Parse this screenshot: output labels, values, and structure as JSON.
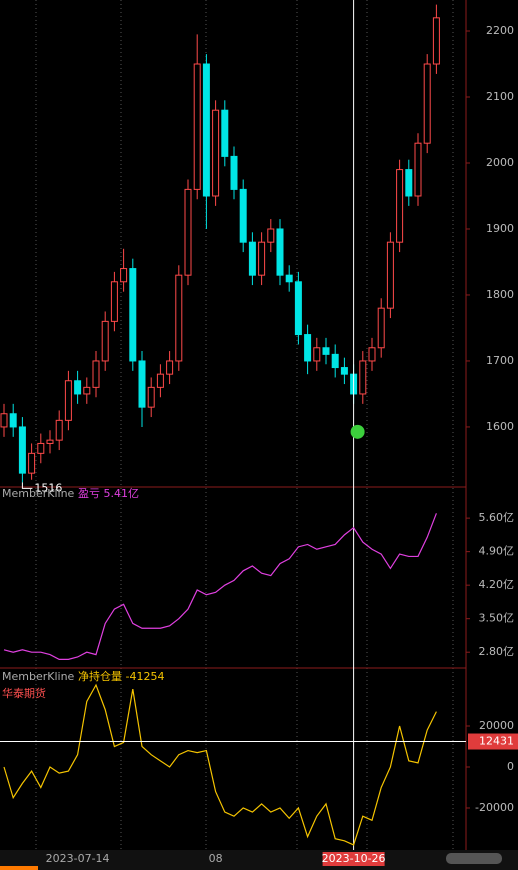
{
  "chart_data": [
    {
      "type": "candlestick",
      "categories": [
        null,
        null,
        null,
        null,
        null,
        null,
        null,
        null,
        "2023-07-14",
        null,
        null,
        null,
        null,
        null,
        null,
        null,
        null,
        null,
        null,
        null,
        null,
        null,
        null,
        "08",
        null,
        null,
        null,
        null,
        null,
        null,
        null,
        null,
        null,
        null,
        null,
        null,
        null,
        null,
        "2023-10-26",
        null,
        null,
        null,
        null,
        null,
        null,
        null,
        null,
        null
      ],
      "open": [
        1600,
        1620,
        1600,
        1530,
        1560,
        1575,
        1580,
        1610,
        1670,
        1650,
        1660,
        1700,
        1760,
        1820,
        1840,
        1700,
        1630,
        1660,
        1680,
        1700,
        1830,
        1960,
        2150,
        1950,
        2080,
        2010,
        1960,
        1880,
        1830,
        1880,
        1900,
        1830,
        1820,
        1740,
        1700,
        1720,
        1710,
        1690,
        1680,
        1650,
        1700,
        1720,
        1780,
        1880,
        1990,
        1950,
        2030,
        2150
      ],
      "high": [
        1635,
        1635,
        1615,
        1575,
        1590,
        1595,
        1625,
        1685,
        1685,
        1675,
        1715,
        1775,
        1835,
        1870,
        1855,
        1715,
        1675,
        1695,
        1715,
        1845,
        1975,
        2195,
        2165,
        2095,
        2095,
        2025,
        1975,
        1895,
        1895,
        1915,
        1915,
        1845,
        1835,
        1755,
        1735,
        1735,
        1725,
        1705,
        1695,
        1715,
        1735,
        1795,
        1895,
        2005,
        2005,
        2045,
        2165,
        2240
      ],
      "low": [
        1585,
        1585,
        1516,
        1520,
        1545,
        1560,
        1565,
        1595,
        1635,
        1635,
        1645,
        1685,
        1745,
        1805,
        1685,
        1600,
        1615,
        1645,
        1665,
        1685,
        1815,
        1945,
        1900,
        1935,
        1995,
        1945,
        1865,
        1815,
        1815,
        1865,
        1815,
        1805,
        1725,
        1680,
        1685,
        1695,
        1675,
        1665,
        1635,
        1635,
        1685,
        1705,
        1765,
        1865,
        1935,
        1935,
        2015,
        2135
      ],
      "close": [
        1620,
        1600,
        1530,
        1560,
        1575,
        1580,
        1610,
        1670,
        1650,
        1660,
        1700,
        1760,
        1820,
        1840,
        1700,
        1630,
        1660,
        1680,
        1700,
        1830,
        1960,
        2150,
        1950,
        2080,
        2010,
        1960,
        1880,
        1830,
        1880,
        1900,
        1830,
        1820,
        1740,
        1700,
        1720,
        1710,
        1690,
        1680,
        1650,
        1700,
        1720,
        1780,
        1880,
        1990,
        1950,
        2030,
        2150,
        2220
      ],
      "up_color": "#ff4a4a",
      "down_color": "#00e5e5",
      "ylim": [
        1509,
        2247
      ],
      "yticks": [
        1600,
        1700,
        1800,
        1900,
        2000,
        2100,
        2200
      ],
      "low_marker": 1516,
      "cursor_index": 38
    },
    {
      "type": "line",
      "title": "MemberKline",
      "subtitle": "盈亏 5.41亿",
      "color": "#e040e0",
      "values": [
        2.85,
        2.8,
        2.85,
        2.8,
        2.8,
        2.75,
        2.65,
        2.65,
        2.7,
        2.8,
        2.75,
        3.4,
        3.7,
        3.8,
        3.4,
        3.3,
        3.3,
        3.3,
        3.35,
        3.5,
        3.7,
        4.1,
        4.0,
        4.05,
        4.2,
        4.3,
        4.5,
        4.6,
        4.45,
        4.4,
        4.65,
        4.75,
        5.0,
        5.05,
        4.95,
        5.0,
        5.05,
        5.25,
        5.4,
        5.1,
        4.95,
        4.85,
        4.55,
        4.85,
        4.8,
        4.8,
        5.2,
        5.7
      ],
      "ylim": [
        2.47,
        6.25
      ],
      "yticks": [
        {
          "value": 2.8,
          "label": "2.80亿"
        },
        {
          "value": 3.5,
          "label": "3.50亿"
        },
        {
          "value": 4.2,
          "label": "4.20亿"
        },
        {
          "value": 4.9,
          "label": "4.90亿"
        },
        {
          "value": 5.6,
          "label": "5.60亿"
        }
      ]
    },
    {
      "type": "line",
      "title": "MemberKline",
      "subtitle": "净持仓量 -41254",
      "label": "华泰期货",
      "color": "#f5c400",
      "values": [
        0,
        -15000,
        -8000,
        -2000,
        -10000,
        0,
        -3000,
        -2000,
        6000,
        32000,
        40000,
        28000,
        10000,
        12000,
        38000,
        10000,
        6000,
        3000,
        0,
        6000,
        8000,
        7000,
        8000,
        -12000,
        -22000,
        -24000,
        -20000,
        -22000,
        -18000,
        -22000,
        -20000,
        -25000,
        -20000,
        -34000,
        -24000,
        -18000,
        -35000,
        -36000,
        -38000,
        -24000,
        -26000,
        -10000,
        0,
        20000,
        3000,
        2000,
        18000,
        27000
      ],
      "ylim": [
        -40500,
        48300
      ],
      "yticks": [
        -20000,
        0,
        20000
      ],
      "cursor_value": 12431
    }
  ]
}
